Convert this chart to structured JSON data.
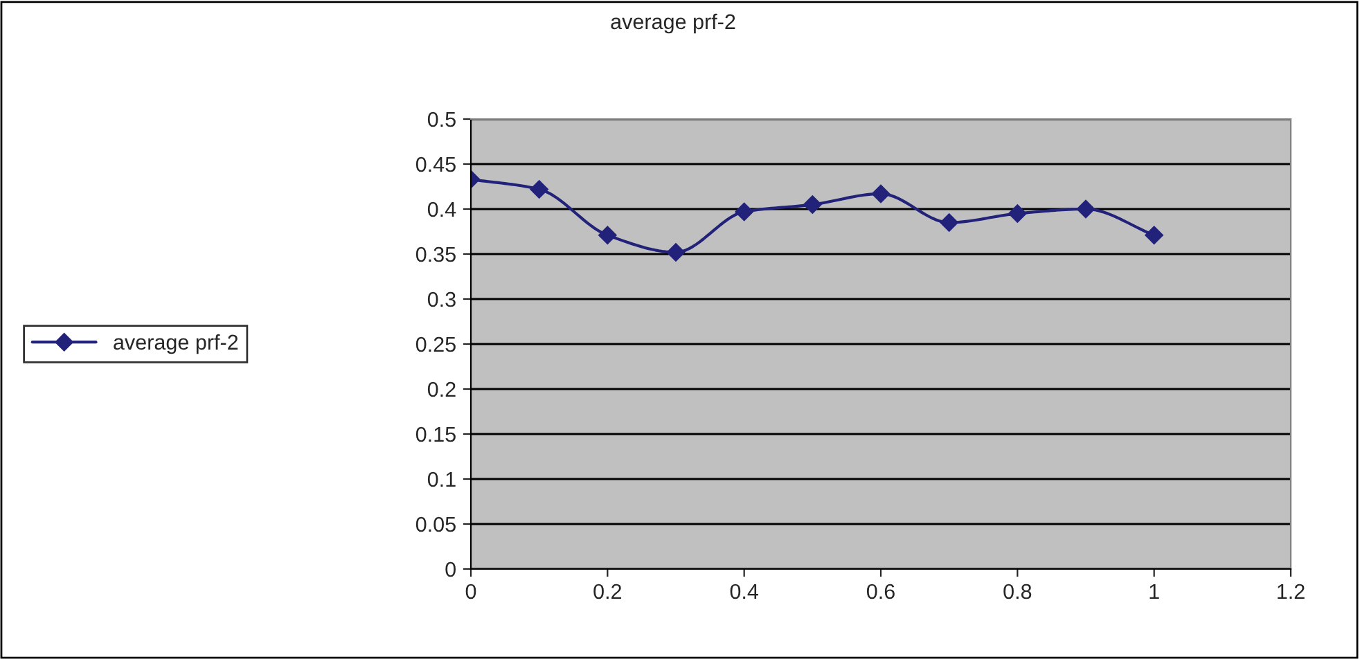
{
  "chart_data": {
    "type": "line",
    "title": "average prf-2",
    "x": [
      0,
      0.1,
      0.2,
      0.3,
      0.4,
      0.5,
      0.6,
      0.7,
      0.8,
      0.9,
      1.0
    ],
    "series": [
      {
        "name": "average prf-2",
        "color": "#22227a",
        "values": [
          0.433,
          0.422,
          0.371,
          0.352,
          0.397,
          0.405,
          0.417,
          0.385,
          0.395,
          0.4,
          0.371
        ]
      }
    ],
    "xlim": [
      0,
      1.2
    ],
    "xticks": [
      0,
      0.2,
      0.4,
      0.6,
      0.8,
      1,
      1.2
    ],
    "ylim": [
      0,
      0.5
    ],
    "yticks": [
      0,
      0.05,
      0.1,
      0.15,
      0.2,
      0.25,
      0.3,
      0.35,
      0.4,
      0.45,
      0.5
    ],
    "grid": "y",
    "legend": "left",
    "marker": "diamond",
    "line_style": "solid"
  }
}
